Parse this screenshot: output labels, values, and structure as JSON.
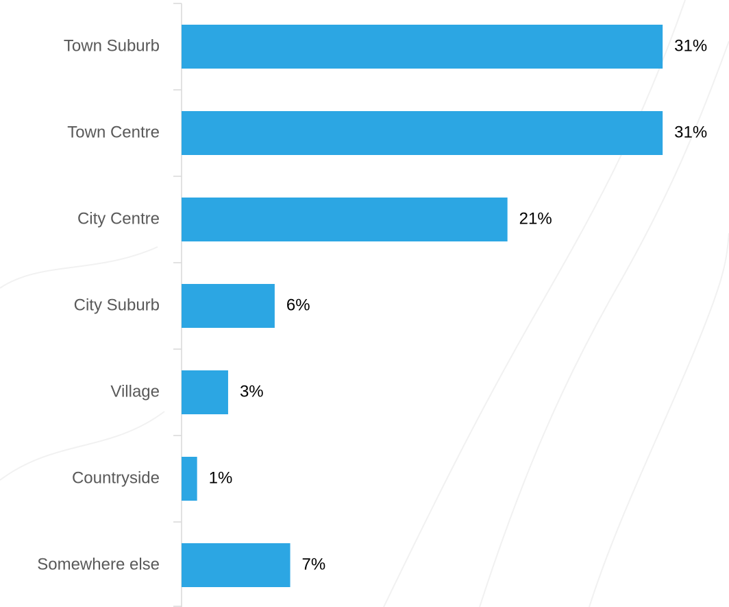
{
  "chart_data": {
    "type": "bar",
    "orientation": "horizontal",
    "categories": [
      "Town Suburb",
      "Town Centre",
      "City Centre",
      "City Suburb",
      "Village",
      "Countryside",
      "Somewhere else"
    ],
    "values": [
      31,
      31,
      21,
      6,
      3,
      1,
      7
    ],
    "value_labels": [
      "31%",
      "31%",
      "21%",
      "6%",
      "3%",
      "1%",
      "7%"
    ],
    "color": "#2ca6e3"
  }
}
